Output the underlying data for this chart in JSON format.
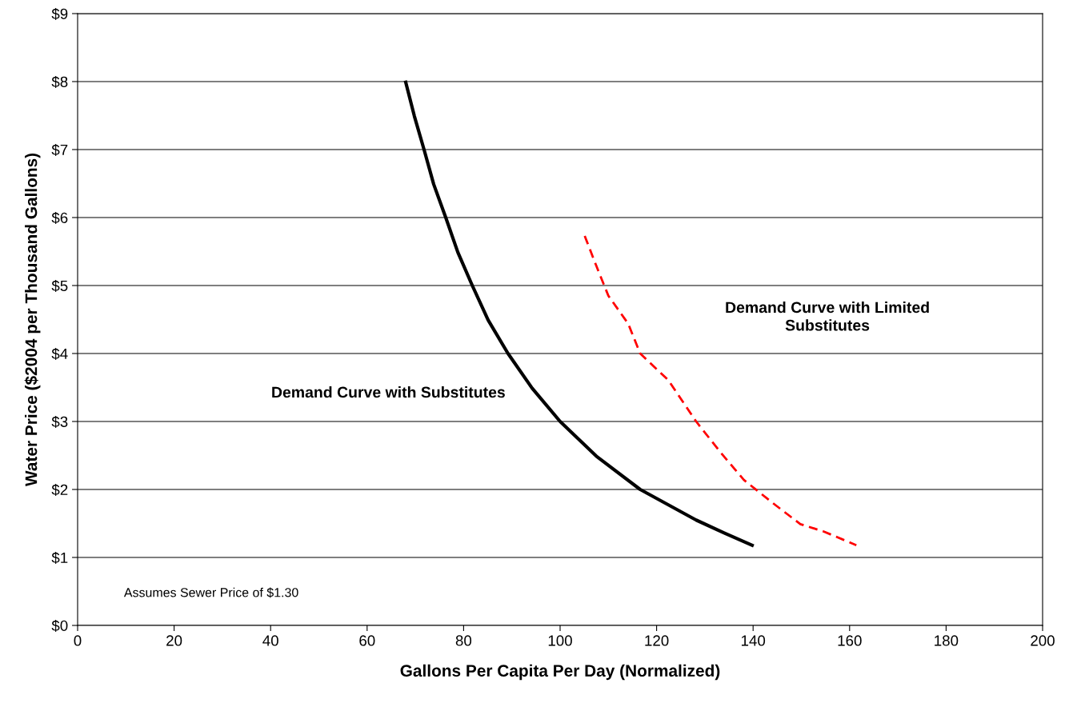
{
  "chart_data": {
    "type": "line",
    "xlabel": "Gallons Per Capita Per Day (Normalized)",
    "ylabel": "Water Price ($2004 per Thousand Gallons)",
    "series": [
      {
        "color": "#000000",
        "line_style": "solid",
        "x": [
          68.0,
          69.8,
          71.8,
          73.8,
          76.3,
          78.8,
          81.8,
          85.1,
          89.2,
          94.2,
          100.0,
          107.5,
          116.6,
          128.2,
          134.0,
          139.8
        ],
        "values": [
          7.99,
          7.49,
          7.0,
          6.49,
          6.0,
          5.49,
          5.0,
          4.49,
          4.0,
          3.49,
          3.0,
          2.49,
          2.0,
          1.55,
          1.36,
          1.18
        ]
      },
      {
        "color": "#ff0000",
        "line_style": "dashed",
        "x": [
          105.1,
          107.5,
          110.0,
          114.1,
          116.6,
          122.4,
          128.2,
          133.2,
          138.1,
          143.9,
          149.8,
          154.7,
          161.4
        ],
        "values": [
          5.73,
          5.29,
          4.85,
          4.44,
          4.0,
          3.61,
          3.0,
          2.55,
          2.14,
          1.81,
          1.49,
          1.38,
          1.18
        ]
      }
    ],
    "xlim": [
      0,
      200
    ],
    "ylim": [
      0,
      9
    ],
    "xticks": [
      0,
      20,
      40,
      60,
      80,
      100,
      120,
      140,
      160,
      180,
      200
    ],
    "yticks": [
      {
        "value": 0,
        "label": "$0"
      },
      {
        "value": 1,
        "label": "$1"
      },
      {
        "value": 2,
        "label": "$2"
      },
      {
        "value": 3,
        "label": "$3"
      },
      {
        "value": 4,
        "label": "$4"
      },
      {
        "value": 5,
        "label": "$5"
      },
      {
        "value": 6,
        "label": "$6"
      },
      {
        "value": 7,
        "label": "$7"
      },
      {
        "value": 8,
        "label": "$8"
      },
      {
        "value": 9,
        "label": "$9"
      }
    ],
    "grid": "y",
    "marker": "none",
    "annotations": [
      "Demand Curve with Substitutes",
      "Demand Curve with Limited\nSubstitutes",
      "Assumes Sewer Price of $1.30"
    ]
  }
}
